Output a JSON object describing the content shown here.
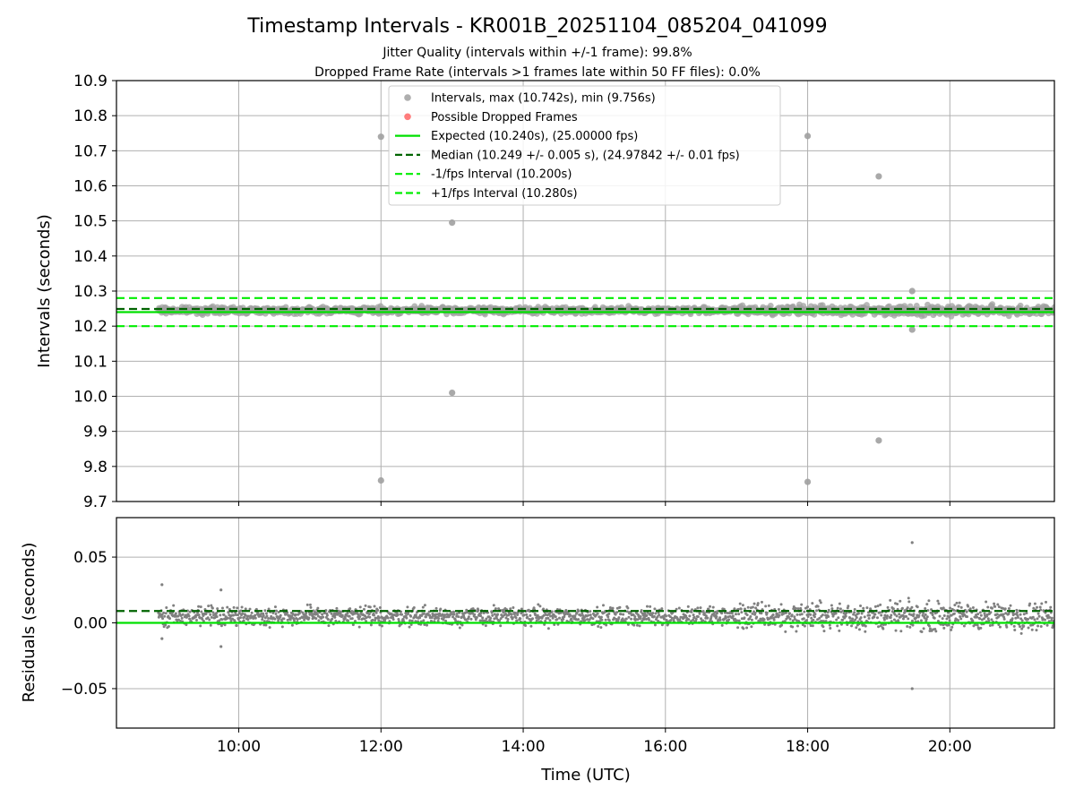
{
  "figure": {
    "title": "Timestamp Intervals - KR001B_20251104_085204_041099",
    "subtitle_jitter": "Jitter Quality (intervals within +/-1 frame): 99.8%",
    "subtitle_dropped": "Dropped Frame Rate (intervals >1 frames late within 50 FF files): 0.0%",
    "xlabel": "Time (UTC)"
  },
  "colors": {
    "points": "#808080",
    "dropped": "#ff6666",
    "expected": "#00e000",
    "median": "#006400",
    "fps_interval": "#00ee00",
    "grid": "#b0b0b0"
  },
  "chart_data": [
    {
      "type": "scatter",
      "ylabel": "Intervals (seconds)",
      "ylim": [
        9.7,
        10.9
      ],
      "yticks": [
        9.7,
        9.8,
        9.9,
        10.0,
        10.1,
        10.2,
        10.3,
        10.4,
        10.5,
        10.6,
        10.7,
        10.8,
        10.9
      ],
      "ytick_labels": [
        "9.7",
        "9.8",
        "9.9",
        "10.0",
        "10.1",
        "10.2",
        "10.3",
        "10.4",
        "10.5",
        "10.6",
        "10.7",
        "10.8",
        "10.9"
      ],
      "xlim_hours": [
        8.28,
        21.47
      ],
      "grid": true,
      "legend_position": "top-center",
      "legend": [
        {
          "label": "Intervals, max (10.742s), min (9.756s)",
          "kind": "dot",
          "color": "#a0a0a0"
        },
        {
          "label": "Possible Dropped Frames",
          "kind": "dot",
          "color": "#ff6666"
        },
        {
          "label": "Expected (10.240s), (25.00000 fps)",
          "kind": "solid",
          "color": "#00e000"
        },
        {
          "label": "Median (10.249 +/- 0.005 s), (24.97842 +/- 0.01 fps)",
          "kind": "dashed",
          "color": "#006400"
        },
        {
          "label": "-1/fps Interval (10.200s)",
          "kind": "dashed",
          "color": "#00ee00"
        },
        {
          "label": "+1/fps Interval (10.280s)",
          "kind": "dashed",
          "color": "#00ee00"
        }
      ],
      "lines": {
        "expected": 10.24,
        "median": 10.249,
        "minus_fps": 10.2,
        "plus_fps": 10.28
      },
      "series_band": {
        "x_start_hours": 8.87,
        "x_end_hours": 21.47,
        "center": 10.245,
        "spread": 0.008
      },
      "outliers": [
        {
          "x": 12.0,
          "y": 10.74
        },
        {
          "x": 12.0,
          "y": 9.76
        },
        {
          "x": 13.0,
          "y": 10.495
        },
        {
          "x": 13.0,
          "y": 10.01
        },
        {
          "x": 18.0,
          "y": 10.742
        },
        {
          "x": 18.0,
          "y": 9.756
        },
        {
          "x": 19.0,
          "y": 10.627
        },
        {
          "x": 19.0,
          "y": 9.874
        },
        {
          "x": 19.47,
          "y": 10.3
        },
        {
          "x": 19.47,
          "y": 10.19
        }
      ]
    },
    {
      "type": "scatter",
      "ylabel": "Residuals (seconds)",
      "ylim": [
        -0.08,
        0.08
      ],
      "yticks": [
        -0.05,
        0.0,
        0.05
      ],
      "ytick_labels": [
        "−0.05",
        "0.00",
        "0.05"
      ],
      "xticks_hours": [
        10,
        12,
        14,
        16,
        18,
        20
      ],
      "xtick_labels": [
        "10:00",
        "12:00",
        "14:00",
        "16:00",
        "18:00",
        "20:00"
      ],
      "xlim_hours": [
        8.28,
        21.47
      ],
      "grid": true,
      "lines": {
        "zero": 0.0,
        "median": 0.009
      },
      "series_band": {
        "x_start_hours": 8.87,
        "x_end_hours": 21.47,
        "center": 0.005,
        "spread": 0.006
      },
      "outliers": [
        {
          "x": 8.92,
          "y": 0.029
        },
        {
          "x": 8.92,
          "y": -0.012
        },
        {
          "x": 9.75,
          "y": 0.025
        },
        {
          "x": 9.75,
          "y": -0.018
        },
        {
          "x": 19.47,
          "y": 0.061
        },
        {
          "x": 19.47,
          "y": -0.05
        }
      ]
    }
  ]
}
